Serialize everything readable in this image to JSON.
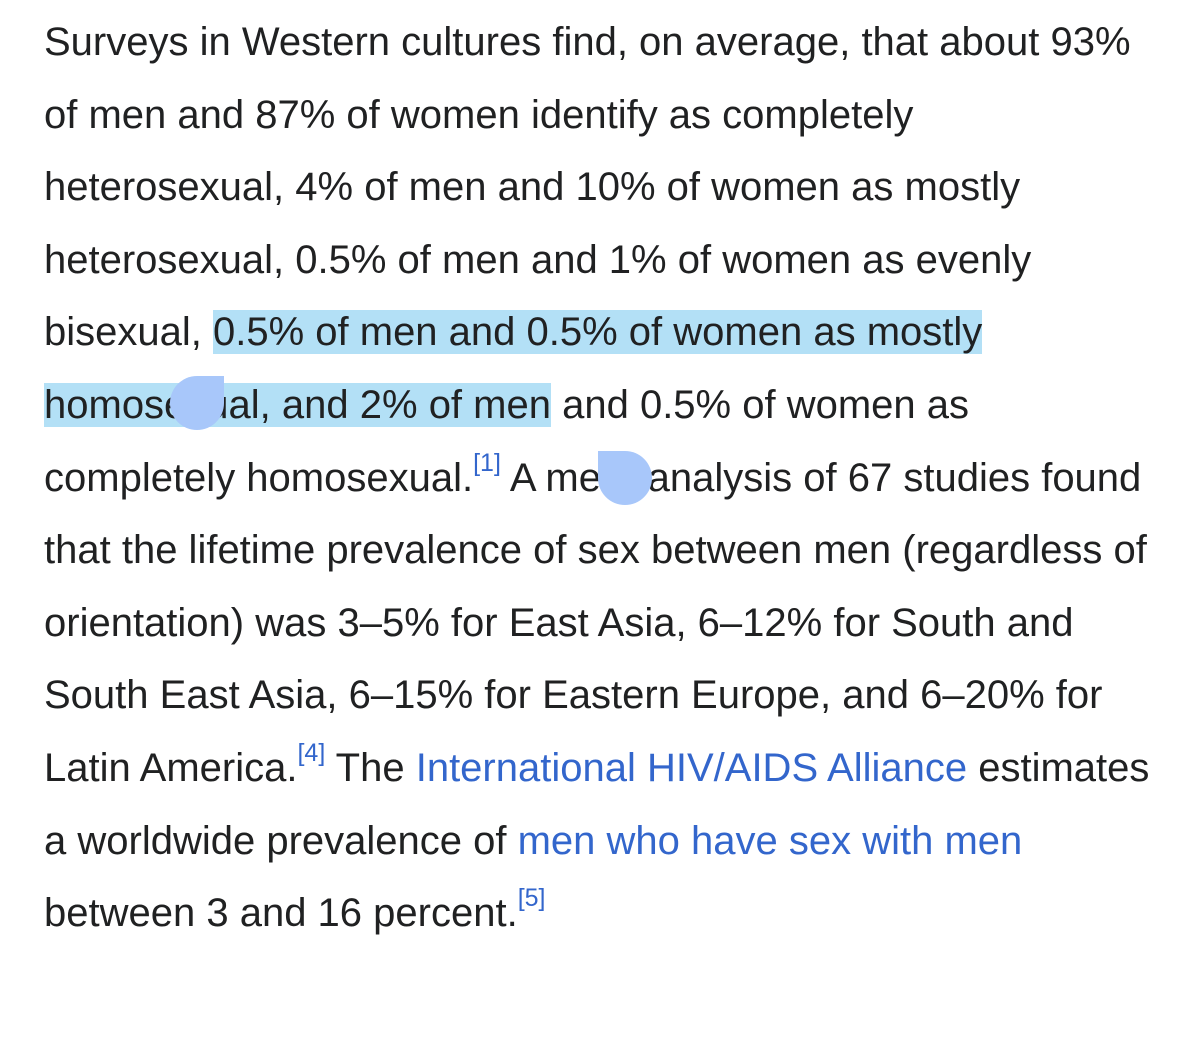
{
  "paragraph": {
    "t1": "Surveys in Western cultures find, on average, that about 93% of men and 87% of women identify as completely heterosexual, 4% of men and 10% of women as mostly heterosexual, 0.5% of men and 1% of women as evenly bisexual, ",
    "selected": "0.5% of men and 0.5% of women as mostly homosexual, and 2% of men",
    "t2": " and 0.5% of women as completely homosexual.",
    "ref1": "[1]",
    "t3": " A meta-analysis of 67 studies found that the lifetime prevalence of sex between men (regardless of orientation) was 3–5% for East Asia, 6–12% for South and South East Asia, 6–15% for Eastern Europe, and 6–20% for Latin America.",
    "ref4": "[4]",
    "t4": " The ",
    "link1": "International HIV/AIDS Alliance",
    "t5": " estimates a worldwide prevalence of ",
    "link2": "men who have sex with men",
    "t6": " between 3 and 16 percent.",
    "ref5": "[5]"
  },
  "colors": {
    "text": "#202122",
    "link": "#3366cc",
    "selection": "#b3e0f6",
    "handle": "#a8c7fa"
  },
  "icons": {
    "selection_start": "selection-handle-start",
    "selection_end": "selection-handle-end"
  }
}
